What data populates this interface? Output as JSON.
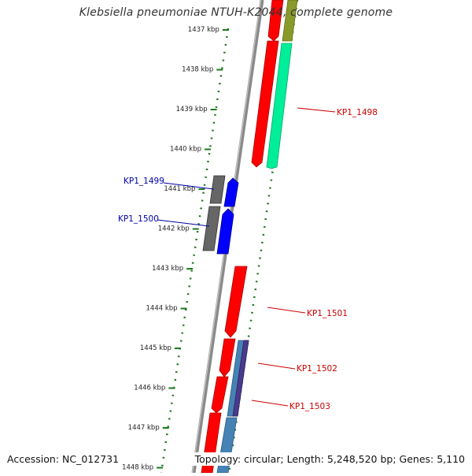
{
  "title": "Klebsiella pneumoniae NTUH-K2044, complete genome",
  "accession": "Accession: NC_012731",
  "summary": "Topology: circular; Length: 5,248,520 bp; Genes: 5,110",
  "ticks": [
    "1437 kbp",
    "1438 kbp",
    "1439 kbp",
    "1440 kbp",
    "1441 kbp",
    "1442 kbp",
    "1443 kbp",
    "1444 kbp",
    "1445 kbp",
    "1446 kbp",
    "1447 kbp",
    "1448 kbp"
  ],
  "gene_labels": [
    {
      "id": "KP1_1498",
      "color": "#cc0000"
    },
    {
      "id": "KP1_1499",
      "color": "#0000aa"
    },
    {
      "id": "KP1_1500",
      "color": "#0000aa"
    },
    {
      "id": "KP1_1501",
      "color": "#cc0000"
    },
    {
      "id": "KP1_1502",
      "color": "#cc0000"
    },
    {
      "id": "KP1_1503",
      "color": "#cc0000"
    }
  ],
  "colors": {
    "backbone": "#888888",
    "tick_dots": "#1e7a1e",
    "forward_cds": "#ff0000",
    "reverse_cds": "#0000ff",
    "pseudo": "#666666",
    "green_cds": "#00ee99",
    "olive_cds": "#8a9a2a",
    "blue_cds": "#4682b4",
    "purple_cds": "#4b3a8c"
  },
  "icons": [
    "map-backbone",
    "gene-arrow"
  ]
}
